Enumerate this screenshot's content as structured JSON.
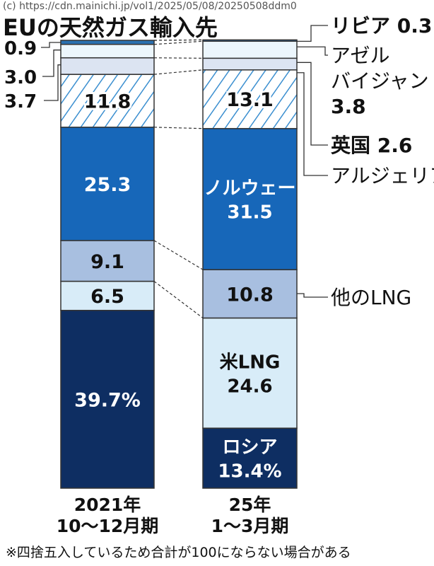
{
  "chart_data": {
    "type": "bar",
    "stacked": true,
    "title": "EUの天然ガス輸入先",
    "watermark": "(c) https://cdn.mainichi.jp/vol1/2025/05/08/20250508ddm0",
    "unit": "%",
    "categories": [
      "2021年 10〜12月期",
      "25年 1〜3月期"
    ],
    "category_lines": [
      [
        "2021年",
        "10〜12月期"
      ],
      [
        "25年",
        "1〜3月期"
      ]
    ],
    "series": [
      {
        "name": "ロシア",
        "values": [
          39.7,
          13.4
        ],
        "color": "#0e2e62",
        "text_color": "#ffffff",
        "labels": [
          [
            "39.7%"
          ],
          [
            "ロシア",
            "13.4%"
          ]
        ]
      },
      {
        "name": "米LNG",
        "values": [
          6.5,
          24.6
        ],
        "color": "#d8ecf8",
        "text_color": "#111111",
        "labels": [
          [
            "6.5"
          ],
          [
            "米LNG",
            "24.6"
          ]
        ]
      },
      {
        "name": "他のLNG",
        "values": [
          9.1,
          10.8
        ],
        "color": "#a8bfe0",
        "text_color": "#111111",
        "labels": [
          [
            "9.1"
          ],
          [
            "10.8"
          ]
        ]
      },
      {
        "name": "ノルウェー",
        "values": [
          25.3,
          31.5
        ],
        "color": "#1767b9",
        "text_color": "#ffffff",
        "labels": [
          [
            "25.3"
          ],
          [
            "ノルウェー",
            "31.5"
          ]
        ]
      },
      {
        "name": "アルジェリア",
        "values": [
          11.8,
          13.1
        ],
        "color": "hatch",
        "text_color": "#111111",
        "labels": [
          [
            "11.8"
          ],
          [
            "13.1"
          ]
        ]
      },
      {
        "name": "英国",
        "values": [
          3.7,
          2.6
        ],
        "color": "#dce4f2",
        "text_color": "#111111",
        "labels": [
          [],
          []
        ]
      },
      {
        "name": "アゼルバイジャン",
        "values": [
          3.0,
          3.8
        ],
        "color": "#ecf6fc",
        "text_color": "#111111",
        "labels": [
          [],
          []
        ]
      },
      {
        "name": "リビア",
        "values": [
          0.9,
          0.3
        ],
        "color": "#2a70b0",
        "text_color": "#111111",
        "labels": [
          [],
          []
        ]
      }
    ],
    "left_labels": [
      "0.9",
      "3.0",
      "3.7"
    ],
    "right_labels": [
      {
        "lines": [
          "リビア 0.3"
        ]
      },
      {
        "lines": [
          "アゼル",
          "バイジャン",
          "3.8"
        ]
      },
      {
        "lines": [
          "英国 2.6"
        ]
      },
      {
        "lines": [
          "アルジェリア"
        ]
      },
      {
        "lines": [
          "他のLNG"
        ]
      }
    ],
    "note": "※四捨五入しているため合計が100にならない場合がある",
    "hatch_color": "#3b8fd0"
  }
}
